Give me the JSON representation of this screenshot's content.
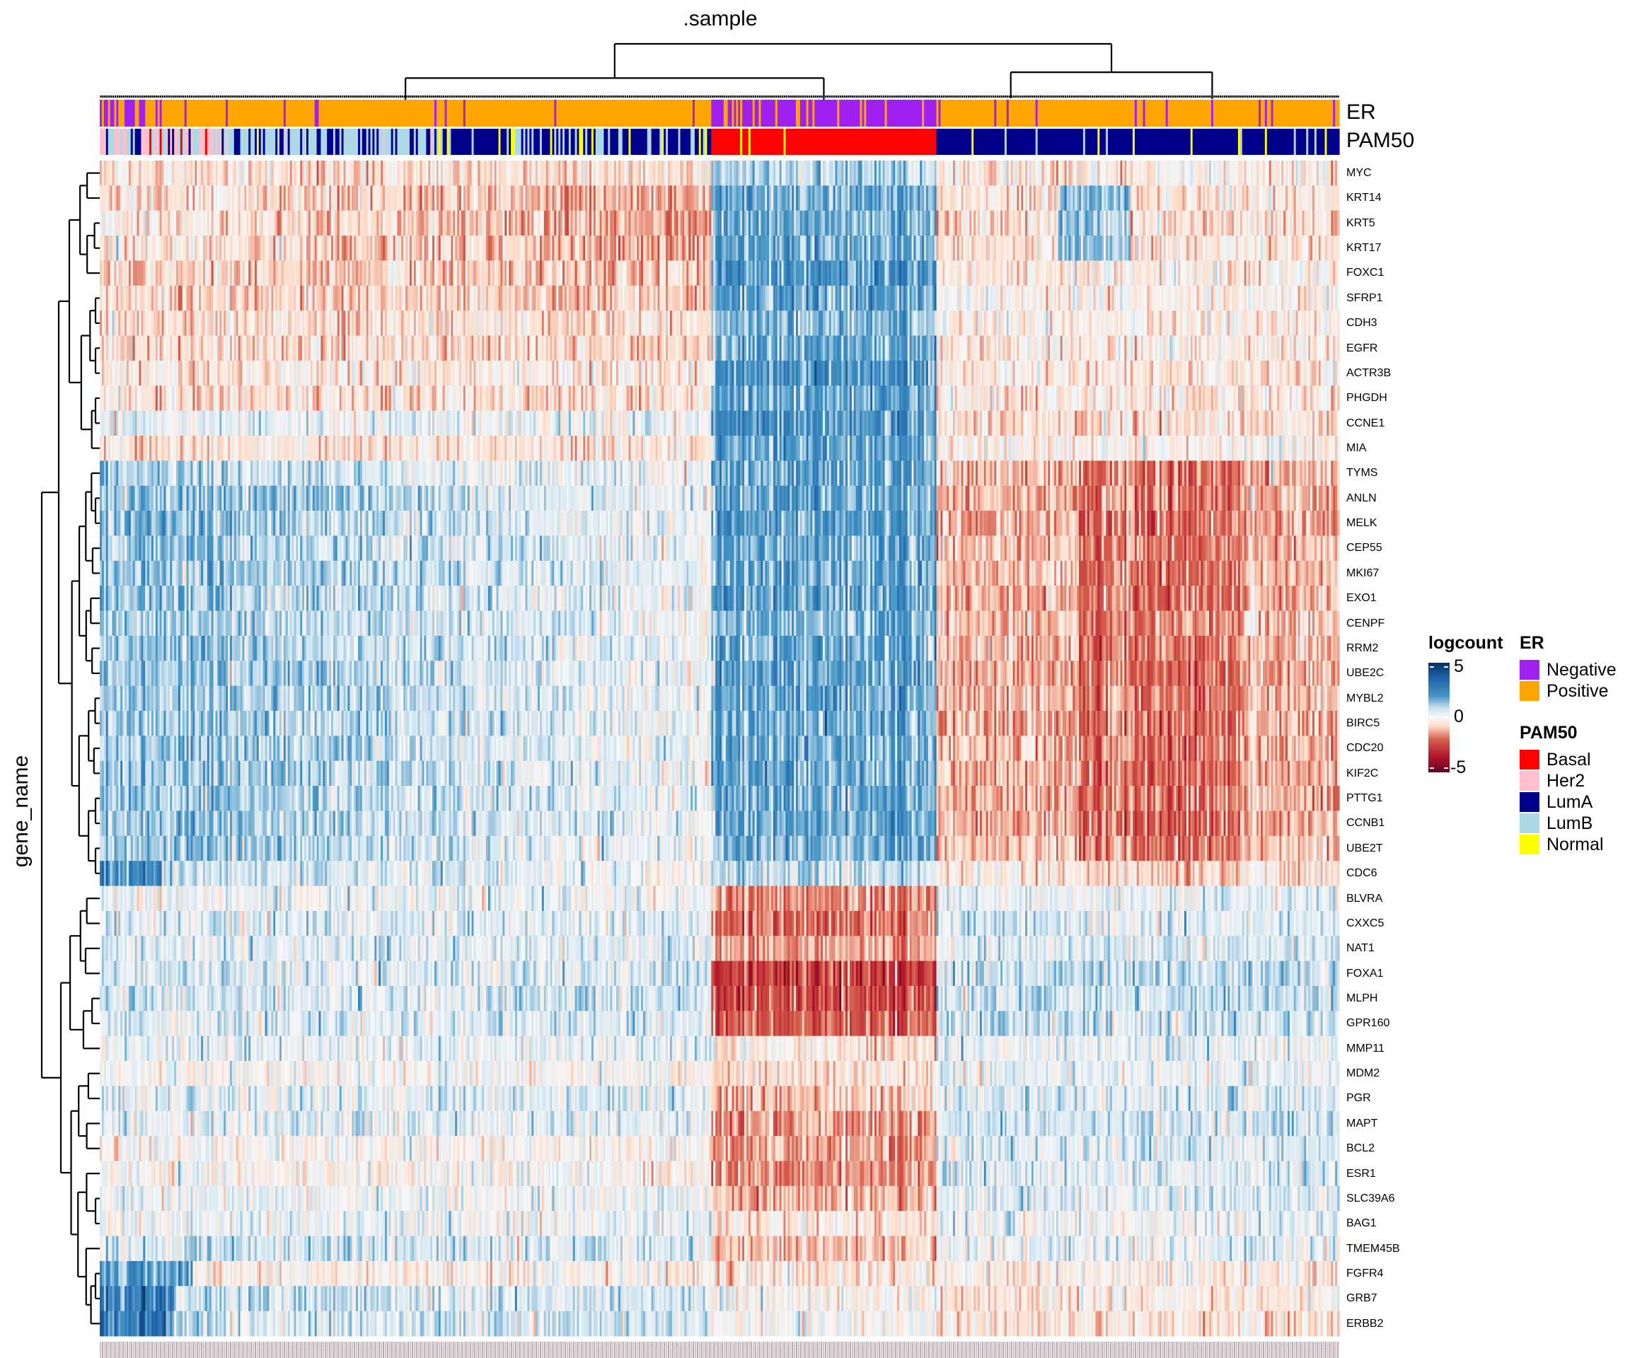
{
  "chart_data": {
    "type": "heatmap",
    "title": ".sample",
    "xlabel": ".sample",
    "ylabel": "gene_name",
    "color_scale": {
      "name": "logcount",
      "min": -5,
      "max": 5,
      "ticks": [
        5,
        0,
        -5
      ],
      "tick_labels": [
        "5",
        "0",
        "-5"
      ],
      "low_color": "#67001f",
      "mid_color": "#f7f7f7",
      "high_color": "#053061"
    },
    "row_dendrogram": true,
    "column_dendrogram": true,
    "column_clusters": [
      "left (LumB/Her2/LumA mixed)",
      "Basal",
      "right (LumA)"
    ],
    "column_cluster_sample_share": [
      0.493,
      0.182,
      0.325
    ],
    "genes": [
      "MYC",
      "KRT14",
      "KRT5",
      "KRT17",
      "FOXC1",
      "SFRP1",
      "CDH3",
      "EGFR",
      "ACTR3B",
      "PHGDH",
      "CCNE1",
      "MIA",
      "TYMS",
      "ANLN",
      "MELK",
      "CEP55",
      "MKI67",
      "EXO1",
      "CENPF",
      "RRM2",
      "UBE2C",
      "MYBL2",
      "BIRC5",
      "CDC20",
      "KIF2C",
      "PTTG1",
      "CCNB1",
      "UBE2T",
      "CDC6",
      "BLVRA",
      "CXXC5",
      "NAT1",
      "FOXA1",
      "MLPH",
      "GPR160",
      "MMP11",
      "MDM2",
      "PGR",
      "MAPT",
      "BCL2",
      "ESR1",
      "SLC39A6",
      "BAG1",
      "TMEM45B",
      "FGFR4",
      "GRB7",
      "ERBB2"
    ],
    "cluster_mean_logcount": {
      "left": [
        -0.6,
        -0.9,
        -0.9,
        -0.9,
        -0.8,
        -0.8,
        -0.6,
        -0.6,
        -0.4,
        -0.5,
        0.3,
        -0.5,
        0.8,
        1.1,
        1.1,
        1.0,
        1.0,
        1.0,
        0.9,
        1.0,
        1.0,
        1.0,
        1.0,
        1.0,
        1.0,
        1.0,
        1.0,
        0.9,
        0.7,
        0.2,
        0.4,
        0.4,
        0.5,
        0.5,
        0.5,
        0.3,
        0.0,
        0.4,
        0.3,
        -0.1,
        -0.1,
        0.2,
        0.2,
        0.6,
        -0.2,
        0.6,
        0.6
      ],
      "basal": [
        1.0,
        1.5,
        1.6,
        1.5,
        2.0,
        1.8,
        1.3,
        1.6,
        2.0,
        1.7,
        1.9,
        1.6,
        1.7,
        1.6,
        1.7,
        1.6,
        1.6,
        1.7,
        1.4,
        1.6,
        1.6,
        1.6,
        1.6,
        1.6,
        1.6,
        1.6,
        1.6,
        1.5,
        0.6,
        -1.5,
        -1.8,
        -1.2,
        -2.6,
        -2.4,
        -2.0,
        -0.4,
        -0.5,
        -0.9,
        -1.2,
        -1.3,
        -1.4,
        -1.1,
        -0.4,
        -1.0,
        -0.4,
        0.0,
        0.1
      ],
      "right": [
        -0.3,
        0.3,
        0.3,
        0.3,
        -0.3,
        -0.2,
        -0.3,
        -0.3,
        -0.4,
        -0.4,
        -0.6,
        -0.2,
        -1.3,
        -1.3,
        -1.4,
        -1.3,
        -1.3,
        -1.3,
        -1.2,
        -1.3,
        -1.4,
        -1.3,
        -1.4,
        -1.4,
        -1.4,
        -1.4,
        -1.4,
        -1.2,
        -0.5,
        0.3,
        0.5,
        0.5,
        0.8,
        0.8,
        0.7,
        0.3,
        0.3,
        0.5,
        0.6,
        0.5,
        0.5,
        0.5,
        0.2,
        0.2,
        -0.3,
        -0.4,
        -0.5
      ]
    },
    "column_annotations": [
      {
        "name": "ER",
        "levels": [
          {
            "label": "Negative",
            "color": "#a020f0"
          },
          {
            "label": "Positive",
            "color": "#ffa500"
          }
        ]
      },
      {
        "name": "PAM50",
        "levels": [
          {
            "label": "Basal",
            "color": "#ff0000"
          },
          {
            "label": "Her2",
            "color": "#ffc0cb"
          },
          {
            "label": "LumA",
            "color": "#00008b"
          },
          {
            "label": "LumB",
            "color": "#add8e6"
          },
          {
            "label": "Normal",
            "color": "#ffff00"
          }
        ]
      }
    ],
    "legend_position": "right"
  }
}
